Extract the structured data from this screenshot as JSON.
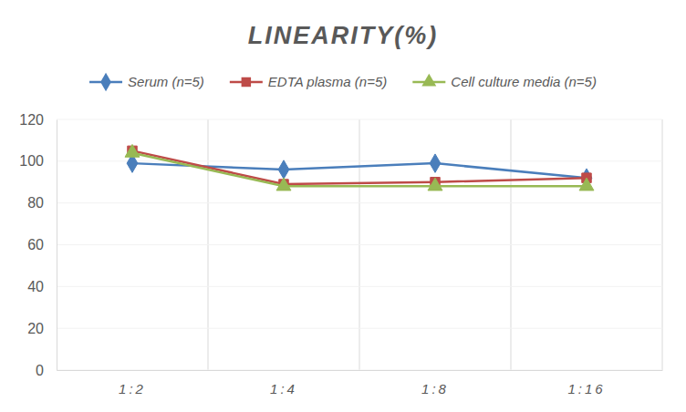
{
  "chart_data": {
    "type": "line",
    "title": "LINEARITY(%)",
    "categories": [
      "1:2",
      "1:4",
      "1:8",
      "1:16"
    ],
    "series": [
      {
        "name": "Serum (n=5)",
        "color": "#4a7ebb",
        "marker": "diamond",
        "values": [
          99,
          96,
          99,
          92
        ]
      },
      {
        "name": "EDTA plasma (n=5)",
        "color": "#be4b48",
        "marker": "square",
        "values": [
          105,
          89,
          90,
          92
        ]
      },
      {
        "name": "Cell culture media (n=5)",
        "color": "#98b954",
        "marker": "triangle",
        "values": [
          104,
          88,
          88,
          88
        ]
      }
    ],
    "ylim": [
      0,
      120
    ],
    "yticks": [
      0,
      20,
      40,
      60,
      80,
      100,
      120
    ],
    "grid": true,
    "legend": "top"
  }
}
